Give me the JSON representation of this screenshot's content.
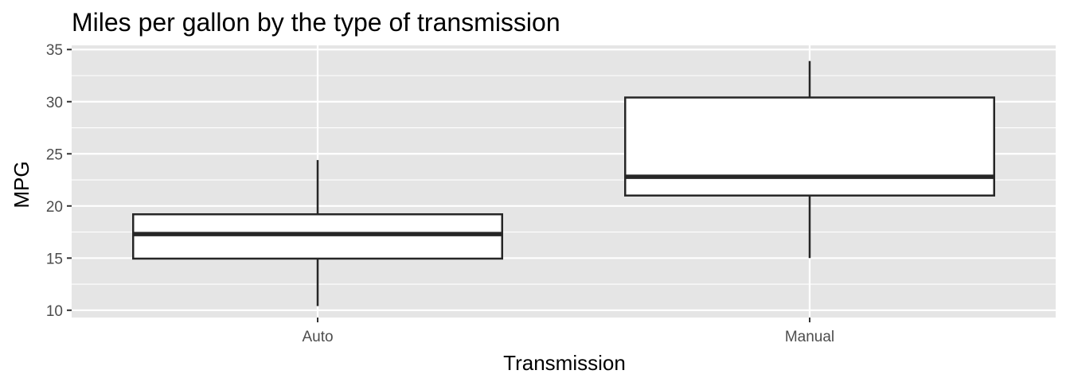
{
  "chart_data": {
    "type": "boxplot",
    "title": "Miles per gallon by the type of transmission",
    "xlabel": "Transmission",
    "ylabel": "MPG",
    "categories": [
      "Auto",
      "Manual"
    ],
    "boxes": [
      {
        "category": "Auto",
        "min": 10.4,
        "q1": 14.95,
        "median": 17.3,
        "q3": 19.2,
        "max": 24.4
      },
      {
        "category": "Manual",
        "min": 15.0,
        "q1": 21.0,
        "median": 22.8,
        "q3": 30.4,
        "max": 33.9
      }
    ],
    "ylim": [
      9.3,
      35.4
    ],
    "yticks": [
      10,
      15,
      20,
      25,
      30,
      35
    ],
    "grid": true,
    "colors": {
      "panel_background": "#e5e5e5",
      "grid": "#ffffff",
      "box_fill": "#ffffff",
      "box_stroke": "#262626",
      "tick": "#333333"
    }
  }
}
